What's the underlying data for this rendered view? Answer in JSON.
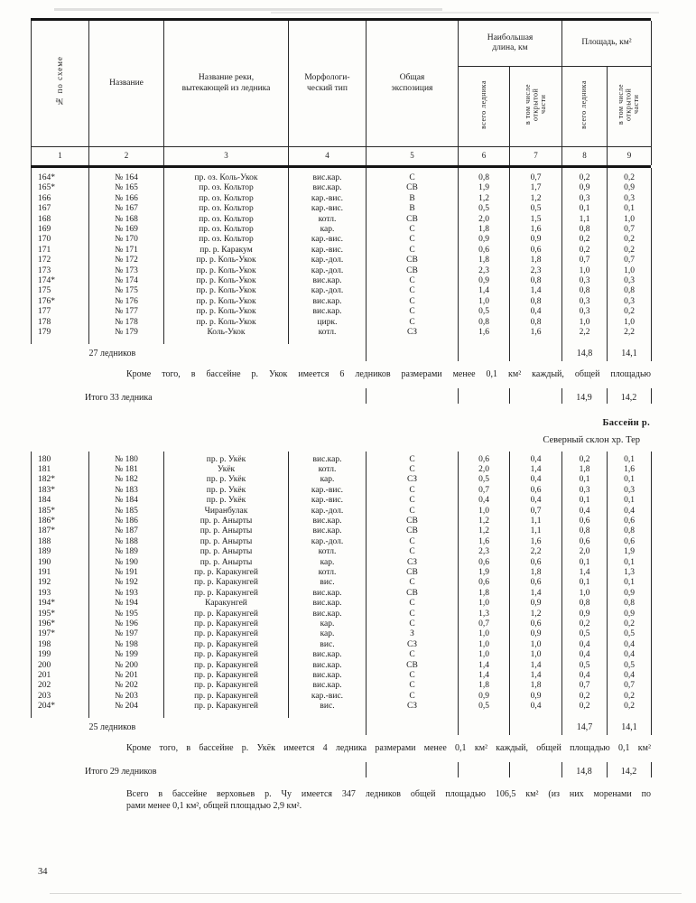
{
  "table_header": {
    "col_no": "№ по схеме",
    "col_name": "Название",
    "col_river": "Название реки,\nвытекающей из ледника",
    "col_type": "Морфологи-\nческий тип",
    "col_exposition": "Общая\nэкспозиция",
    "group_length": "Наибольшая\nдлина, км",
    "group_area": "Площадь, км²",
    "sub_total": "всего ледника",
    "sub_open": "в том числе\nоткрытой\nчасти",
    "col_numbers": [
      "1",
      "2",
      "3",
      "4",
      "5",
      "6",
      "7",
      "8",
      "9"
    ]
  },
  "block1": {
    "rows": [
      [
        "164*",
        "№ 164",
        "пр. оз. Коль-Укок",
        "вис.кар.",
        "С",
        "0,8",
        "0,7",
        "0,2",
        "0,2"
      ],
      [
        "165*",
        "№ 165",
        "пр. оз. Кольтор",
        "вис.кар.",
        "СВ",
        "1,9",
        "1,7",
        "0,9",
        "0,9"
      ],
      [
        "166",
        "№ 166",
        "пр. оз. Кольтор",
        "кар.-вис.",
        "В",
        "1,2",
        "1,2",
        "0,3",
        "0,3"
      ],
      [
        "167",
        "№ 167",
        "пр. оз. Кольтор",
        "кар.-вис.",
        "В",
        "0,5",
        "0,5",
        "0,1",
        "0,1"
      ],
      [
        "168",
        "№ 168",
        "пр. оз. Кольтор",
        "котл.",
        "СВ",
        "2,0",
        "1,5",
        "1,1",
        "1,0"
      ],
      [
        "169",
        "№ 169",
        "пр. оз. Кольтор",
        "кар.",
        "С",
        "1,8",
        "1,6",
        "0,8",
        "0,7"
      ],
      [
        "170",
        "№ 170",
        "пр. оз. Кольтор",
        "кар.-вис.",
        "С",
        "0,9",
        "0,9",
        "0,2",
        "0,2"
      ],
      [
        "171",
        "№ 171",
        "пр. р. Каракум",
        "кар.-вис.",
        "С",
        "0,6",
        "0,6",
        "0,2",
        "0,2"
      ],
      [
        "172",
        "№ 172",
        "пр. р. Коль-Укок",
        "кар.-дол.",
        "СВ",
        "1,8",
        "1,8",
        "0,7",
        "0,7"
      ],
      [
        "173",
        "№ 173",
        "пр. р. Коль-Укок",
        "кар.-дол.",
        "СВ",
        "2,3",
        "2,3",
        "1,0",
        "1,0"
      ],
      [
        "174*",
        "№ 174",
        "пр. р. Коль-Укок",
        "вис.кар.",
        "С",
        "0,9",
        "0,8",
        "0,3",
        "0,3"
      ],
      [
        "175",
        "№ 175",
        "пр. р. Коль-Укок",
        "кар.-дол.",
        "С",
        "1,4",
        "1,4",
        "0,8",
        "0,8"
      ],
      [
        "176*",
        "№ 176",
        "пр. р. Коль-Укок",
        "вис.кар.",
        "С",
        "1,0",
        "0,8",
        "0,3",
        "0,3"
      ],
      [
        "177",
        "№ 177",
        "пр. р. Коль-Укок",
        "вис.кар.",
        "С",
        "0,5",
        "0,4",
        "0,3",
        "0,2"
      ],
      [
        "178",
        "№ 178",
        "пр. р. Коль-Укок",
        "цирк.",
        "С",
        "0,8",
        "0,8",
        "1,0",
        "1,0"
      ],
      [
        "179",
        "№ 179",
        "Коль-Укок",
        "котл.",
        "СЗ",
        "1,6",
        "1,6",
        "2,2",
        "2,2"
      ]
    ],
    "summary": {
      "label": "27 ледников",
      "area_total": "14,8",
      "area_open": "14,1"
    }
  },
  "note1": "Кроме того, в бассейне р. Укок имеется 6 ледников размерами менее 0,1 км² каждый, общей площадью",
  "total1": {
    "label": "Итого 33 ледника",
    "area_total": "14,9",
    "area_open": "14,2"
  },
  "section": {
    "basin": "Бассейн р.",
    "slope": "Северный склон хр. Тер"
  },
  "block2": {
    "rows": [
      [
        "180",
        "№ 180",
        "пр. р. Укёк",
        "вис.кар.",
        "С",
        "0,6",
        "0,4",
        "0,2",
        "0,1"
      ],
      [
        "181",
        "№ 181",
        "Укёк",
        "котл.",
        "С",
        "2,0",
        "1,4",
        "1,8",
        "1,6"
      ],
      [
        "182*",
        "№ 182",
        "пр. р. Укёк",
        "кар.",
        "СЗ",
        "0,5",
        "0,4",
        "0,1",
        "0,1"
      ],
      [
        "183*",
        "№ 183",
        "пр. р. Укёк",
        "кар.-вис.",
        "С",
        "0,7",
        "0,6",
        "0,3",
        "0,3"
      ],
      [
        "184",
        "№ 184",
        "пр. р. Укёк",
        "кар.-вис.",
        "С",
        "0,4",
        "0,4",
        "0,1",
        "0,1"
      ],
      [
        "185*",
        "№ 185",
        "Чиранбулак",
        "кар.-дол.",
        "С",
        "1,0",
        "0,7",
        "0,4",
        "0,4"
      ],
      [
        "186*",
        "№ 186",
        "пр. р. Анырты",
        "вис.кар.",
        "СВ",
        "1,2",
        "1,1",
        "0,6",
        "0,6"
      ],
      [
        "187*",
        "№ 187",
        "пр. р. Анырты",
        "вис.кар.",
        "СВ",
        "1,2",
        "1,1",
        "0,8",
        "0,8"
      ],
      [
        "188",
        "№ 188",
        "пр. р. Анырты",
        "кар.-дол.",
        "С",
        "1,6",
        "1,6",
        "0,6",
        "0,6"
      ],
      [
        "189",
        "№ 189",
        "пр. р. Анырты",
        "котл.",
        "С",
        "2,3",
        "2,2",
        "2,0",
        "1,9"
      ],
      [
        "190",
        "№ 190",
        "пр. р. Анырты",
        "кар.",
        "СЗ",
        "0,6",
        "0,6",
        "0,1",
        "0,1"
      ],
      [
        "191",
        "№ 191",
        "пр. р. Каракунгей",
        "котл.",
        "СВ",
        "1,9",
        "1,8",
        "1,4",
        "1,3"
      ],
      [
        "192",
        "№ 192",
        "пр. р. Каракунгей",
        "вис.",
        "С",
        "0,6",
        "0,6",
        "0,1",
        "0,1"
      ],
      [
        "193",
        "№ 193",
        "пр. р. Каракунгей",
        "вис.кар.",
        "СВ",
        "1,8",
        "1,4",
        "1,0",
        "0,9"
      ],
      [
        "194*",
        "№ 194",
        "Каракунгей",
        "вис.кар.",
        "С",
        "1,0",
        "0,9",
        "0,8",
        "0,8"
      ],
      [
        "195*",
        "№ 195",
        "пр. р. Каракунгей",
        "вис.кар.",
        "С",
        "1,3",
        "1,2",
        "0,9",
        "0,9"
      ],
      [
        "196*",
        "№ 196",
        "пр. р. Каракунгей",
        "кар.",
        "С",
        "0,7",
        "0,6",
        "0,2",
        "0,2"
      ],
      [
        "197*",
        "№ 197",
        "пр. р. Каракунгей",
        "кар.",
        "З",
        "1,0",
        "0,9",
        "0,5",
        "0,5"
      ],
      [
        "198",
        "№ 198",
        "пр. р. Каракунгей",
        "вис.",
        "СЗ",
        "1,0",
        "1,0",
        "0,4",
        "0,4"
      ],
      [
        "199",
        "№ 199",
        "пр. р. Каракунгей",
        "вис.кар.",
        "С",
        "1,0",
        "1,0",
        "0,4",
        "0,4"
      ],
      [
        "200",
        "№ 200",
        "пр. р. Каракунгей",
        "вис.кар.",
        "СВ",
        "1,4",
        "1,4",
        "0,5",
        "0,5"
      ],
      [
        "201",
        "№ 201",
        "пр. р. Каракунгей",
        "вис.кар.",
        "С",
        "1,4",
        "1,4",
        "0,4",
        "0,4"
      ],
      [
        "202",
        "№ 202",
        "пр. р. Каракунгей",
        "вис.кар.",
        "С",
        "1,8",
        "1,8",
        "0,7",
        "0,7"
      ],
      [
        "203",
        "№ 203",
        "пр. р. Каракунгей",
        "кар.-вис.",
        "С",
        "0,9",
        "0,9",
        "0,2",
        "0,2"
      ],
      [
        "204*",
        "№ 204",
        "пр. р. Каракунгей",
        "вис.",
        "СЗ",
        "0,5",
        "0,4",
        "0,2",
        "0,2"
      ]
    ],
    "summary": {
      "label": "25 ледников",
      "area_total": "14,7",
      "area_open": "14,1"
    }
  },
  "note2": "Кроме того, в бассейне р. Укёк имеется 4 ледника размерами менее 0,1 км² каждый, общей площадью 0,1 км²",
  "total2": {
    "label": "Итого 29 ледников",
    "area_total": "14,8",
    "area_open": "14,2"
  },
  "footer_paragraph": {
    "line1": "Всего в бассейне верховьев р. Чу имеется 347 ледников общей площадью 106,5 км² (из них моренами по",
    "line2": "рами менее 0,1 км², общей площадью 2,9 км²."
  },
  "page": {
    "number": "34"
  }
}
